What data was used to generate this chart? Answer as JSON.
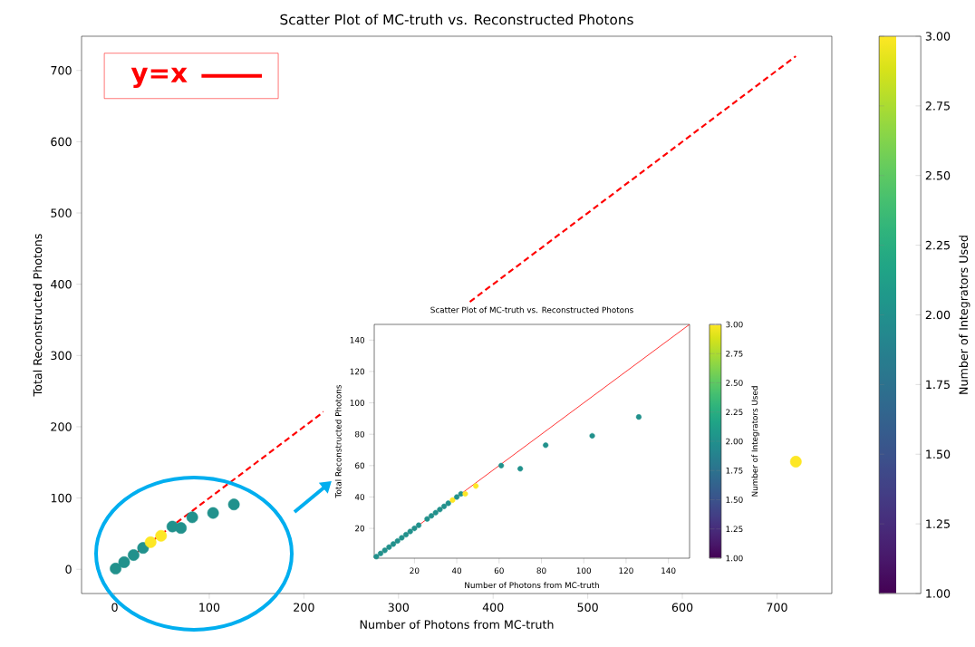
{
  "chart_data": [
    {
      "type": "scatter",
      "title": "Scatter Plot of MC-truth vs. Reconstructed Photons",
      "xlabel": "Number of Photons from MC-truth",
      "ylabel": "Total Reconstructed Photons",
      "clabel": "Number of Integrators Used",
      "xlim": [
        -35,
        758
      ],
      "ylim": [
        -34,
        748
      ],
      "xticks": [
        0,
        100,
        200,
        300,
        400,
        500,
        600,
        700
      ],
      "yticks": [
        0,
        100,
        200,
        300,
        400,
        500,
        600,
        700
      ],
      "clim": [
        1,
        3
      ],
      "cticks": [
        {
          "value": 1,
          "label": "1.00"
        },
        {
          "value": 1.25,
          "label": "1.25"
        },
        {
          "value": 1.5,
          "label": "1.50"
        },
        {
          "value": 1.75,
          "label": "1.75"
        },
        {
          "value": 2,
          "label": "2.00"
        },
        {
          "value": 2.25,
          "label": "2.25"
        },
        {
          "value": 2.5,
          "label": "2.50"
        },
        {
          "value": 2.75,
          "label": "2.75"
        },
        {
          "value": 3,
          "label": "3.00"
        }
      ],
      "legend": "top left",
      "series": [
        {
          "marker": "circle",
          "x": [
            1,
            10,
            20,
            30,
            38,
            49,
            61,
            70,
            82,
            104,
            126,
            720
          ],
          "values": [
            1,
            10,
            20,
            30,
            38,
            47,
            60,
            58,
            73,
            79,
            91,
            151
          ],
          "colors": [
            "#21918c",
            "#21918c",
            "#21918c",
            "#21918c",
            "#fde725",
            "#fde725",
            "#21918c",
            "#21918c",
            "#21918c",
            "#21918c",
            "#21918c",
            "#fde725"
          ]
        },
        {
          "type": "line",
          "name": "y=x",
          "color": "#ff0000",
          "line_style": "dashed",
          "x": [
            0,
            720
          ],
          "values": [
            0,
            720
          ]
        }
      ]
    },
    {
      "type": "scatter",
      "title": "Scatter Plot of MC-truth vs. Reconstructed Photons",
      "xlabel": "Number of Photons from MC-truth",
      "ylabel": "Total Reconstructed Photons",
      "clabel": "Number of Integrators Used",
      "xlim": [
        1,
        150
      ],
      "ylim": [
        1,
        150
      ],
      "xticks": [
        20,
        40,
        60,
        80,
        100,
        120,
        140
      ],
      "yticks": [
        20,
        40,
        60,
        80,
        100,
        120,
        140
      ],
      "clim": [
        1,
        3
      ],
      "cticks": [
        {
          "value": 1,
          "label": "1.00"
        },
        {
          "value": 1.25,
          "label": "1.25"
        },
        {
          "value": 1.5,
          "label": "1.50"
        },
        {
          "value": 1.75,
          "label": "1.75"
        },
        {
          "value": 2,
          "label": "2.00"
        },
        {
          "value": 2.25,
          "label": "2.25"
        },
        {
          "value": 2.5,
          "label": "2.50"
        },
        {
          "value": 2.75,
          "label": "2.75"
        },
        {
          "value": 3,
          "label": "3.00"
        }
      ],
      "series": [
        {
          "marker": "circle",
          "x": [
            2,
            4,
            6,
            8,
            10,
            12,
            14,
            16,
            18,
            20,
            22,
            26,
            28,
            30,
            32,
            34,
            36,
            38,
            40,
            42,
            44,
            49,
            61,
            70,
            82,
            104,
            126
          ],
          "values": [
            2,
            4,
            6,
            8,
            10,
            12,
            14,
            16,
            18,
            20,
            22,
            26,
            28,
            30,
            32,
            34,
            36,
            38,
            40,
            42,
            42,
            47,
            60,
            58,
            73,
            79,
            91
          ],
          "colors": [
            "#21918c",
            "#21918c",
            "#21918c",
            "#21918c",
            "#21918c",
            "#21918c",
            "#21918c",
            "#21918c",
            "#21918c",
            "#21918c",
            "#21918c",
            "#21918c",
            "#21918c",
            "#21918c",
            "#21918c",
            "#21918c",
            "#21918c",
            "#fde725",
            "#21918c",
            "#21918c",
            "#fde725",
            "#fde725",
            "#21918c",
            "#21918c",
            "#21918c",
            "#21918c",
            "#21918c"
          ]
        },
        {
          "type": "line",
          "color": "#ff0000",
          "line_style": "solid",
          "x": [
            1,
            150
          ],
          "values": [
            1,
            150
          ]
        }
      ]
    }
  ]
}
